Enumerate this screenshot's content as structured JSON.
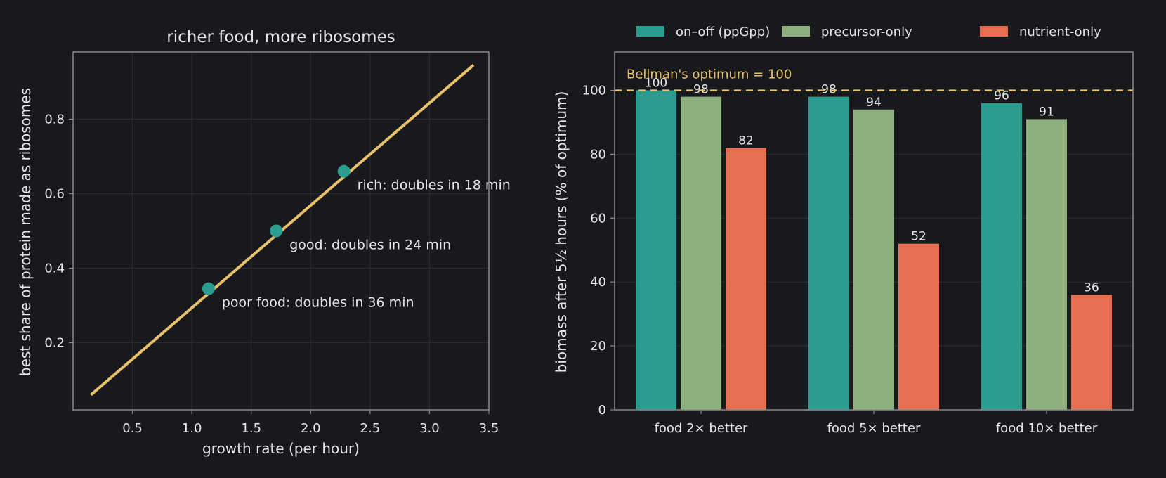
{
  "colors": {
    "background": "#18191c",
    "frame": "#8a8a8e",
    "grid": "#2b2d31",
    "text": "#e6e6e6",
    "line": "#e8c16a",
    "on_off": "#2a9d8f",
    "precursor": "#8db07e",
    "nutrient": "#e76f51",
    "optimum": "#e8c16a"
  },
  "chart_data": [
    {
      "type": "line",
      "title": "richer food, more ribosomes",
      "xlabel": "growth rate (per hour)",
      "ylabel": "best share of protein made as ribosomes",
      "xlim": [
        0.0,
        3.5
      ],
      "ylim": [
        0.02,
        0.98
      ],
      "xticks": [
        0.5,
        1.0,
        1.5,
        2.0,
        2.5,
        3.0,
        3.5
      ],
      "xtick_labels": [
        "0.5",
        "1.0",
        "1.5",
        "2.0",
        "2.5",
        "3.0",
        "3.5"
      ],
      "yticks": [
        0.2,
        0.4,
        0.6,
        0.8
      ],
      "ytick_labels": [
        "0.2",
        "0.4",
        "0.6",
        "0.8"
      ],
      "grid": true,
      "line": {
        "x": [
          0.15,
          3.37
        ],
        "y": [
          0.06,
          0.945
        ]
      },
      "points": [
        {
          "x": 1.14,
          "y": 0.345,
          "label": "poor food: doubles in 36 min"
        },
        {
          "x": 1.71,
          "y": 0.5,
          "label": "good: doubles in 24 min"
        },
        {
          "x": 2.28,
          "y": 0.66,
          "label": "rich: doubles in 18 min"
        }
      ]
    },
    {
      "type": "bar",
      "title": "",
      "xlabel": "",
      "ylabel": "biomass after 5½ hours (% of optimum)",
      "ylim": [
        0,
        112
      ],
      "yticks": [
        0,
        20,
        40,
        60,
        80,
        100
      ],
      "ytick_labels": [
        "0",
        "20",
        "40",
        "60",
        "80",
        "100"
      ],
      "grid": true,
      "legend": "top",
      "categories": [
        "food 2× better",
        "food 5× better",
        "food 10× better"
      ],
      "series": [
        {
          "name": "on–off (ppGpp)",
          "values": [
            100,
            98,
            96
          ],
          "labels": [
            "100",
            "98",
            "96"
          ],
          "color_key": "on_off"
        },
        {
          "name": "precursor-only",
          "values": [
            98,
            94,
            91
          ],
          "labels": [
            "98",
            "94",
            "91"
          ],
          "color_key": "precursor"
        },
        {
          "name": "nutrient-only",
          "values": [
            82,
            52,
            36
          ],
          "labels": [
            "82",
            "52",
            "36"
          ],
          "color_key": "nutrient"
        }
      ],
      "reference_line": {
        "y": 100,
        "label": "Bellman's optimum = 100"
      }
    }
  ]
}
